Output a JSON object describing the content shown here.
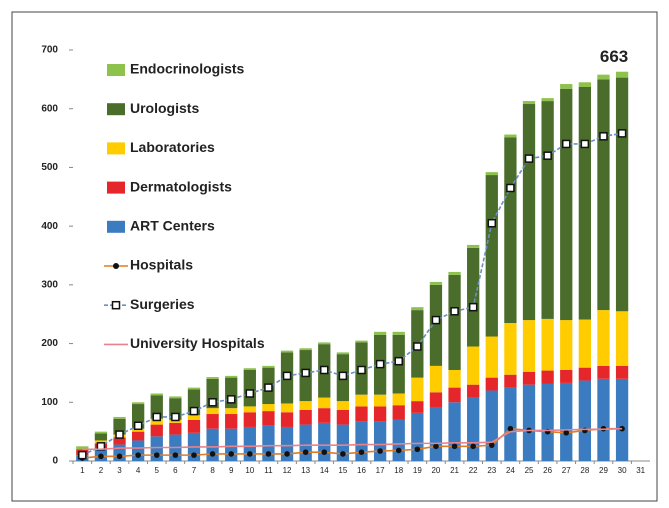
{
  "chart_data": {
    "type": "bar",
    "stacked": true,
    "annotation": {
      "text": "663",
      "category": "30"
    },
    "categories": [
      "1",
      "2",
      "3",
      "4",
      "5",
      "6",
      "7",
      "8",
      "9",
      "10",
      "11",
      "12",
      "13",
      "14",
      "15",
      "16",
      "17",
      "18",
      "19",
      "20",
      "21",
      "22",
      "23",
      "24",
      "25",
      "26",
      "27",
      "28",
      "29",
      "30",
      "31"
    ],
    "ylim": [
      0,
      700
    ],
    "yticks": [
      0,
      100,
      200,
      300,
      400,
      500,
      600,
      700
    ],
    "series": [
      {
        "name": "ART Centers",
        "type": "bar",
        "color": "#3b7bbf",
        "values": [
          10,
          20,
          28,
          35,
          42,
          45,
          48,
          55,
          55,
          58,
          60,
          58,
          62,
          65,
          62,
          68,
          68,
          70,
          82,
          92,
          100,
          108,
          120,
          125,
          130,
          132,
          133,
          137,
          140,
          140,
          null
        ]
      },
      {
        "name": "Dermatologists",
        "type": "bar",
        "color": "#e5262b",
        "values": [
          10,
          10,
          12,
          15,
          20,
          20,
          22,
          25,
          25,
          25,
          25,
          25,
          25,
          25,
          25,
          25,
          25,
          25,
          20,
          25,
          25,
          22,
          22,
          22,
          22,
          22,
          22,
          22,
          22,
          22,
          null
        ]
      },
      {
        "name": "Laboratories",
        "type": "bar",
        "color": "#ffcc00",
        "values": [
          0,
          5,
          5,
          5,
          10,
          5,
          8,
          10,
          10,
          10,
          12,
          15,
          15,
          18,
          15,
          20,
          20,
          20,
          40,
          45,
          30,
          65,
          70,
          88,
          88,
          88,
          85,
          82,
          95,
          93,
          null
        ]
      },
      {
        "name": "Urologists",
        "type": "bar",
        "color": "#4b6d2b",
        "values": [
          0,
          12,
          27,
          42,
          40,
          37,
          44,
          50,
          52,
          62,
          62,
          87,
          87,
          91,
          80,
          89,
          102,
          100,
          115,
          138,
          162,
          168,
          275,
          316,
          368,
          371,
          394,
          396,
          393,
          398,
          null
        ]
      },
      {
        "name": "Endocrinologists",
        "type": "bar",
        "color": "#8dc24c",
        "values": [
          5,
          3,
          3,
          3,
          3,
          3,
          3,
          3,
          3,
          3,
          3,
          3,
          3,
          3,
          3,
          3,
          5,
          5,
          5,
          5,
          5,
          5,
          5,
          5,
          5,
          5,
          8,
          8,
          8,
          10,
          null
        ]
      },
      {
        "name": "Hospitals",
        "type": "line",
        "color": "#e07b26",
        "marker": "circle",
        "values": [
          5,
          8,
          8,
          10,
          10,
          10,
          10,
          12,
          12,
          12,
          12,
          12,
          15,
          15,
          12,
          15,
          17,
          18,
          20,
          25,
          25,
          25,
          27,
          55,
          52,
          50,
          48,
          52,
          55,
          55,
          null
        ]
      },
      {
        "name": "Surgeries",
        "type": "line",
        "color": "#6a8fc6",
        "marker": "square",
        "dashed": true,
        "values": [
          10,
          25,
          45,
          60,
          75,
          75,
          85,
          100,
          105,
          115,
          125,
          145,
          150,
          155,
          145,
          155,
          165,
          170,
          195,
          240,
          255,
          262,
          405,
          465,
          515,
          520,
          540,
          540,
          553,
          558,
          null
        ]
      },
      {
        "name": "University Hospitals",
        "type": "line",
        "color": "#e8828c",
        "marker": "none",
        "values": [
          20,
          20,
          22,
          22,
          23,
          23,
          24,
          24,
          25,
          25,
          26,
          26,
          27,
          27,
          27,
          28,
          28,
          29,
          30,
          30,
          31,
          31,
          32,
          50,
          52,
          52,
          53,
          54,
          54,
          55,
          null
        ]
      }
    ]
  }
}
